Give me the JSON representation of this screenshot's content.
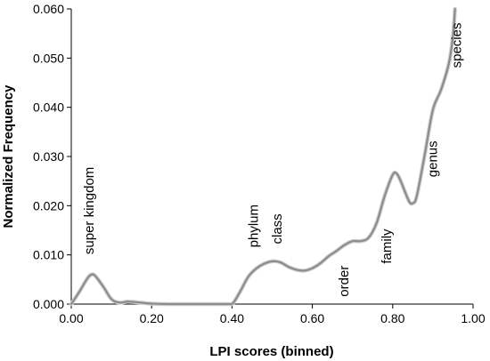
{
  "chart_data": {
    "type": "line",
    "title": "",
    "xlabel": "LPI scores (binned)",
    "ylabel": "Normalized Frequency",
    "xlim": [
      0.0,
      1.0
    ],
    "ylim": [
      0.0,
      0.06
    ],
    "grid": false,
    "legend": "none",
    "x_ticks": [
      "0.00",
      "0.20",
      "0.40",
      "0.60",
      "0.80",
      "1.00"
    ],
    "y_ticks": [
      "0.000",
      "0.010",
      "0.020",
      "0.030",
      "0.040",
      "0.050",
      "0.060"
    ],
    "series": [
      {
        "color": "#8c8c8c",
        "x": [
          0.0,
          0.02,
          0.04,
          0.05,
          0.06,
          0.08,
          0.1,
          0.12,
          0.14,
          0.16,
          0.2,
          0.25,
          0.3,
          0.35,
          0.38,
          0.4,
          0.42,
          0.44,
          0.46,
          0.48,
          0.5,
          0.52,
          0.54,
          0.56,
          0.58,
          0.6,
          0.62,
          0.64,
          0.66,
          0.68,
          0.7,
          0.72,
          0.74,
          0.76,
          0.78,
          0.8,
          0.81,
          0.82,
          0.84,
          0.85,
          0.86,
          0.88,
          0.9,
          0.92,
          0.94,
          0.95,
          0.955
        ],
        "y": [
          0.0,
          0.0025,
          0.0052,
          0.006,
          0.0057,
          0.0035,
          0.001,
          0.0003,
          0.0005,
          0.0004,
          0.0001,
          0.0,
          0.0,
          0.0,
          0.0,
          0.0,
          0.0025,
          0.0055,
          0.0072,
          0.0082,
          0.0087,
          0.0085,
          0.0076,
          0.007,
          0.0068,
          0.0073,
          0.0083,
          0.0097,
          0.0108,
          0.012,
          0.0128,
          0.0128,
          0.0135,
          0.0165,
          0.022,
          0.0263,
          0.0265,
          0.025,
          0.021,
          0.0205,
          0.022,
          0.0305,
          0.0395,
          0.0435,
          0.049,
          0.0545,
          0.06
        ]
      }
    ],
    "annotations": [
      {
        "text": "super kingdom",
        "x": 0.055,
        "y": 0.0101
      },
      {
        "text": "phylum",
        "x": 0.465,
        "y": 0.0115
      },
      {
        "text": "class",
        "x": 0.523,
        "y": 0.0122
      },
      {
        "text": "order",
        "x": 0.69,
        "y": 0.0015
      },
      {
        "text": "family",
        "x": 0.796,
        "y": 0.0082
      },
      {
        "text": "genus",
        "x": 0.91,
        "y": 0.0258
      },
      {
        "text": "species",
        "x": 0.97,
        "y": 0.048
      }
    ]
  }
}
